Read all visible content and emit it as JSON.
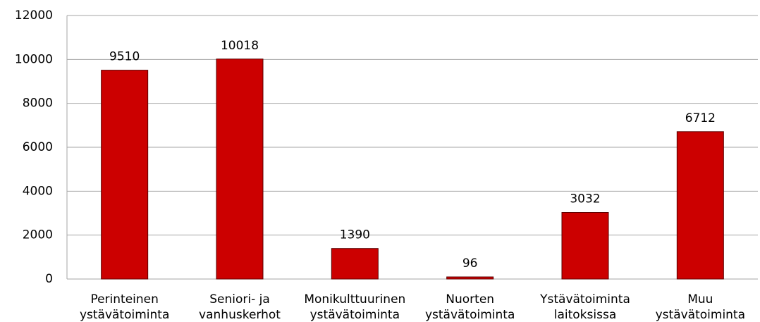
{
  "chart_data": {
    "type": "bar",
    "categories": [
      [
        "Perinteinen",
        "ystävätoiminta"
      ],
      [
        "Seniori- ja",
        "vanhuskerhot"
      ],
      [
        "Monikulttuurinen",
        "ystävätoiminta"
      ],
      [
        "Nuorten",
        "ystävätoiminta"
      ],
      [
        "Ystävätoiminta",
        "laitoksissa"
      ],
      [
        "Muu",
        "ystävätoiminta"
      ]
    ],
    "values": [
      9510,
      10018,
      1390,
      96,
      3032,
      6712
    ],
    "color": "#cc0000",
    "ylim": [
      0,
      12000
    ],
    "yticks": [
      0,
      2000,
      4000,
      6000,
      8000,
      10000,
      12000
    ],
    "grid": true
  }
}
